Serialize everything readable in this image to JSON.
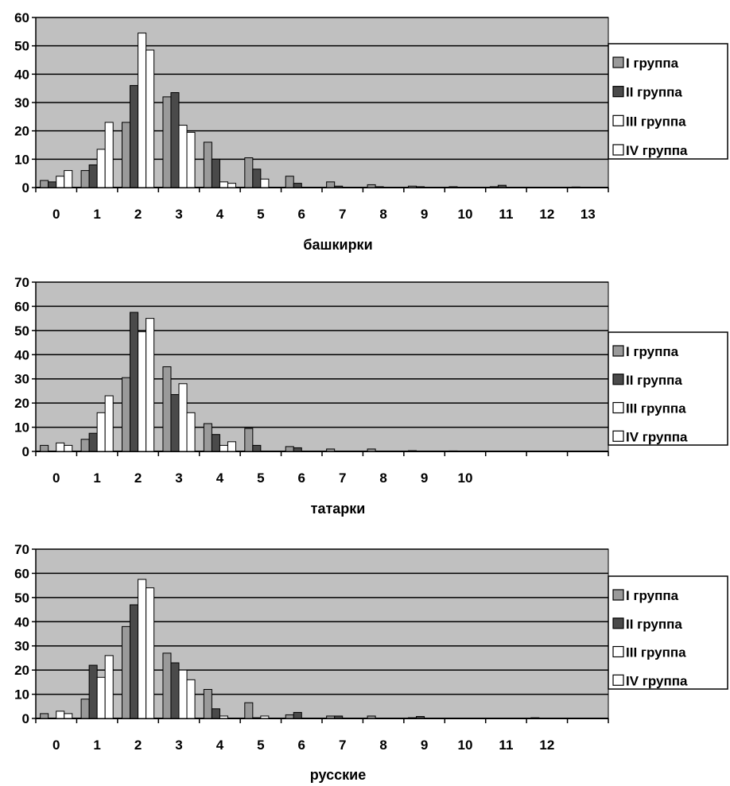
{
  "colors": {
    "plot_bg": "#c0c0c0",
    "series": [
      "#9a9a9a",
      "#4a4a4a",
      "#ffffff",
      "#ffffff"
    ],
    "grid": "#000000"
  },
  "chart_data": [
    {
      "type": "bar",
      "xlabel": "башкирки",
      "ylabel": "",
      "ylim": [
        0,
        60
      ],
      "yticks": [
        0,
        10,
        20,
        30,
        40,
        50,
        60
      ],
      "categories": [
        "0",
        "1",
        "2",
        "3",
        "4",
        "5",
        "6",
        "7",
        "8",
        "9",
        "10",
        "11",
        "12",
        "13"
      ],
      "grid": true,
      "legend_position": "right",
      "series": [
        {
          "name": "I группа",
          "values": [
            2.5,
            6,
            23,
            32,
            16,
            10.5,
            4,
            2,
            1,
            0.5,
            0.3,
            0.3,
            0,
            0.2
          ]
        },
        {
          "name": "II группа",
          "values": [
            2,
            8,
            36,
            33.5,
            10,
            6.5,
            1.5,
            0.5,
            0.3,
            0.3,
            0,
            0.8,
            0,
            0
          ]
        },
        {
          "name": "III группа",
          "values": [
            4,
            13.5,
            54.5,
            22,
            2,
            3,
            0,
            0,
            0,
            0,
            0,
            0,
            0,
            0
          ]
        },
        {
          "name": "IV группа",
          "values": [
            6,
            23,
            48.5,
            19.5,
            1.5,
            0,
            0,
            0,
            0,
            0,
            0,
            0,
            0,
            0
          ]
        }
      ]
    },
    {
      "type": "bar",
      "xlabel": "татарки",
      "ylabel": "",
      "ylim": [
        0,
        70
      ],
      "yticks": [
        0,
        10,
        20,
        30,
        40,
        50,
        60,
        70
      ],
      "categories": [
        "0",
        "1",
        "2",
        "3",
        "4",
        "5",
        "6",
        "7",
        "8",
        "9",
        "10",
        "",
        "",
        ""
      ],
      "grid": true,
      "legend_position": "right",
      "series": [
        {
          "name": "I группа",
          "values": [
            2.5,
            5,
            30.5,
            35,
            11.5,
            9.5,
            2,
            1,
            1,
            0.3,
            0.2,
            0,
            0,
            0
          ]
        },
        {
          "name": "II группа",
          "values": [
            0,
            7.5,
            57.5,
            23.5,
            7,
            2.5,
            1.5,
            0,
            0,
            0,
            0,
            0,
            0,
            0
          ]
        },
        {
          "name": "III группа",
          "values": [
            3.5,
            16,
            49.5,
            28,
            2.5,
            0,
            0,
            0,
            0,
            0,
            0,
            0,
            0,
            0
          ]
        },
        {
          "name": "IV группа",
          "values": [
            2.5,
            23,
            55,
            16,
            4,
            0,
            0,
            0,
            0,
            0,
            0,
            0,
            0,
            0
          ]
        }
      ]
    },
    {
      "type": "bar",
      "xlabel": "русские",
      "ylabel": "",
      "ylim": [
        0,
        70
      ],
      "yticks": [
        0,
        10,
        20,
        30,
        40,
        50,
        60,
        70
      ],
      "categories": [
        "0",
        "1",
        "2",
        "3",
        "4",
        "5",
        "6",
        "7",
        "8",
        "9",
        "10",
        "11",
        "12",
        ""
      ],
      "grid": true,
      "legend_position": "right",
      "series": [
        {
          "name": "I группа",
          "values": [
            2,
            8,
            38,
            27,
            12,
            6.5,
            1.5,
            1,
            1,
            0.3,
            0,
            0,
            0.3,
            0
          ]
        },
        {
          "name": "II группа",
          "values": [
            0,
            22,
            47,
            23,
            4,
            0.3,
            2.5,
            1,
            0,
            0.8,
            0,
            0,
            0,
            0
          ]
        },
        {
          "name": "III группа",
          "values": [
            3,
            17,
            57.5,
            20,
            1,
            1,
            0,
            0,
            0,
            0,
            0,
            0,
            0,
            0
          ]
        },
        {
          "name": "IV группа",
          "values": [
            2,
            26,
            54,
            16,
            0,
            0,
            0,
            0,
            0,
            0,
            0,
            0,
            0,
            0
          ]
        }
      ]
    }
  ]
}
